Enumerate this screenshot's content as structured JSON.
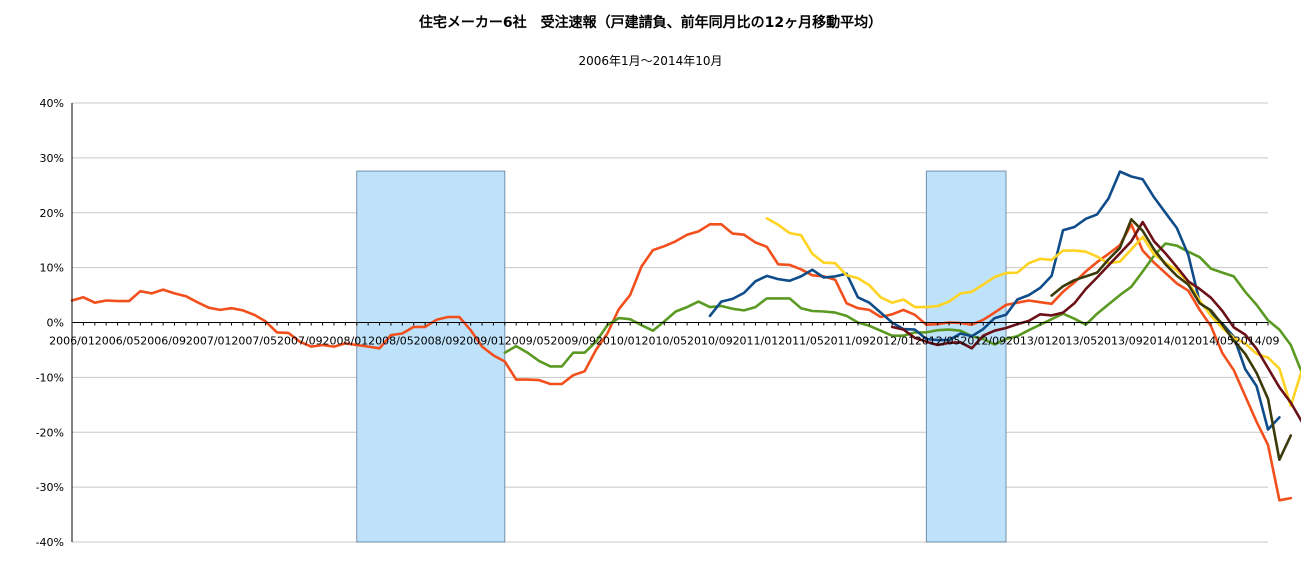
{
  "chart_data": {
    "type": "line",
    "title": "住宅メーカー6社　受注速報（戸建請負、前年同月比の12ヶ月移動平均）",
    "subtitle": "2006年1月～2014年10月",
    "x_start": "2006/01",
    "x_end": "2014/10",
    "x_tick_labels": [
      "2006/01",
      "2006/05",
      "2006/09",
      "2007/01",
      "2007/05",
      "2007/09",
      "2008/01",
      "2008/05",
      "2008/09",
      "2009/01",
      "2009/05",
      "2009/09",
      "2010/01",
      "2010/05",
      "2010/09",
      "2011/01",
      "2011/05",
      "2011/09",
      "2012/01",
      "2012/05",
      "2012/09",
      "2013/01",
      "2013/05",
      "2013/09",
      "2014/01",
      "2014/05",
      "2014/09"
    ],
    "y_tick_labels": [
      "40%",
      "30%",
      "20%",
      "10%",
      "0%",
      "-10%",
      "-20%",
      "-30%",
      "-40%"
    ],
    "ylim": [
      -40,
      40
    ],
    "grid": true,
    "legend": "none",
    "shaded_periods": [
      {
        "from": "2008/02",
        "to": "2009/03",
        "color": "#bfe2fb"
      },
      {
        "from": "2012/04",
        "to": "2012/11",
        "color": "#bfe2fb"
      }
    ],
    "series": [
      {
        "color": "#f24f1d",
        "start": "2006/01",
        "values": [
          4.0,
          4.6,
          3.6,
          4.0,
          3.9,
          3.9,
          5.7,
          5.3,
          6.0,
          5.3,
          4.8,
          3.7,
          2.7,
          2.3,
          2.6,
          2.2,
          1.4,
          0.2,
          -1.8,
          -1.9,
          -3.5,
          -4.4,
          -4.1,
          -4.4,
          -3.8,
          -4.1,
          -4.4,
          -4.7,
          -2.3,
          -2.0,
          -0.8,
          -0.8,
          0.5,
          1.0,
          1.0,
          -1.4,
          -4.4,
          -6.0,
          -7.1,
          -10.4,
          -10.4,
          -10.5,
          -11.2,
          -11.2,
          -9.6,
          -8.9,
          -5.0,
          -2.0,
          2.4,
          5.0,
          10.2,
          13.2,
          13.9,
          14.8,
          16.0,
          16.6,
          17.9,
          17.9,
          16.2,
          16.0,
          14.6,
          13.8,
          10.6,
          10.5,
          9.7,
          8.6,
          8.4,
          7.8,
          3.5,
          2.6,
          2.3,
          1.0,
          1.5,
          2.3,
          1.4,
          -0.4,
          -0.3,
          0.0,
          -0.1,
          -0.4,
          0.5,
          1.8,
          3.2,
          3.6,
          4.0,
          3.7,
          3.4,
          5.6,
          7.3,
          9.3,
          11.0,
          12.5,
          14.1,
          17.9,
          13.1,
          10.9,
          9.0,
          7.1,
          5.8,
          2.3,
          -0.7,
          -5.6,
          -8.7,
          -13.4,
          -18.1,
          -22.3,
          -32.4,
          -32.0
        ]
      },
      {
        "color": "#5a9a22",
        "start": "2009/03",
        "values": [
          -5.5,
          -4.3,
          -5.5,
          -7.0,
          -8.0,
          -8.0,
          -5.5,
          -5.5,
          -3.5,
          -0.5,
          0.8,
          0.6,
          -0.5,
          -1.5,
          0.2,
          2.0,
          2.8,
          3.8,
          2.8,
          3.0,
          2.5,
          2.2,
          2.8,
          4.4,
          4.4,
          4.4,
          2.6,
          2.1,
          2.0,
          1.8,
          1.2,
          0.0,
          -0.6,
          -1.5,
          -2.4,
          -2.4,
          -1.8,
          -1.8,
          -1.4,
          -1.3,
          -1.5,
          -2.5,
          -3.0,
          -4.0,
          -3.0,
          -2.5,
          -1.4,
          -0.4,
          0.6,
          1.6,
          0.7,
          -0.4,
          1.6,
          3.3,
          5.0,
          6.5,
          9.3,
          12.2,
          14.4,
          14.0,
          12.9,
          11.9,
          9.8,
          9.1,
          8.4,
          5.6,
          3.2,
          0.4,
          -1.3,
          -4.1,
          -9.3,
          -10.0
        ]
      },
      {
        "color": "#0f4c8a",
        "start": "2010/09",
        "values": [
          1.2,
          3.8,
          4.3,
          5.4,
          7.5,
          8.5,
          7.9,
          7.6,
          8.4,
          9.6,
          8.2,
          8.4,
          8.9,
          4.6,
          3.6,
          1.8,
          0.0,
          -1.2,
          -1.3,
          -3.0,
          -3.2,
          -3.2,
          -2.0,
          -2.5,
          -1.2,
          0.8,
          1.4,
          4.2,
          5.0,
          6.3,
          8.5,
          16.8,
          17.4,
          18.9,
          19.7,
          22.6,
          27.5,
          26.6,
          26.1,
          22.8,
          20.0,
          17.2,
          12.3,
          3.7,
          1.6,
          -0.2,
          -2.6,
          -8.5,
          -11.6,
          -19.5,
          -17.3
        ]
      },
      {
        "color": "#ffd322",
        "start": "2011/02",
        "values": [
          19.0,
          17.8,
          16.3,
          15.9,
          12.5,
          10.9,
          10.8,
          8.6,
          8.1,
          6.8,
          4.6,
          3.6,
          4.2,
          2.8,
          2.8,
          3.0,
          3.8,
          5.3,
          5.6,
          6.9,
          8.3,
          9.0,
          9.1,
          10.8,
          11.6,
          11.4,
          13.1,
          13.1,
          12.9,
          12.0,
          10.8,
          11.1,
          13.3,
          15.6,
          12.4,
          10.9,
          9.5,
          7.3,
          4.0,
          1.2,
          -1.0,
          -2.8,
          -3.8,
          -5.7,
          -6.4,
          -8.4,
          -15.2,
          -8.5
        ]
      },
      {
        "color": "#6b1118",
        "start": "2012/01",
        "values": [
          -0.8,
          -1.3,
          -2.8,
          -3.5,
          -4.1,
          -3.7,
          -3.6,
          -4.7,
          -2.4,
          -1.5,
          -1.0,
          -0.3,
          0.3,
          1.5,
          1.3,
          1.8,
          3.5,
          6.1,
          8.2,
          10.4,
          12.6,
          14.8,
          18.3,
          14.8,
          12.6,
          10.1,
          7.5,
          6.1,
          4.5,
          2.1,
          -0.9,
          -2.2,
          -4.8,
          -8.3,
          -11.8,
          -14.6,
          -18.2,
          -16.9
        ]
      },
      {
        "color": "#3a3a0a",
        "start": "2013/03",
        "values": [
          4.9,
          6.6,
          7.7,
          8.4,
          9.1,
          11.5,
          13.6,
          18.8,
          16.7,
          13.3,
          10.6,
          8.5,
          6.9,
          3.5,
          2.2,
          -0.4,
          -3.3,
          -5.7,
          -9.2,
          -13.9,
          -25.0,
          -20.6
        ]
      }
    ]
  }
}
